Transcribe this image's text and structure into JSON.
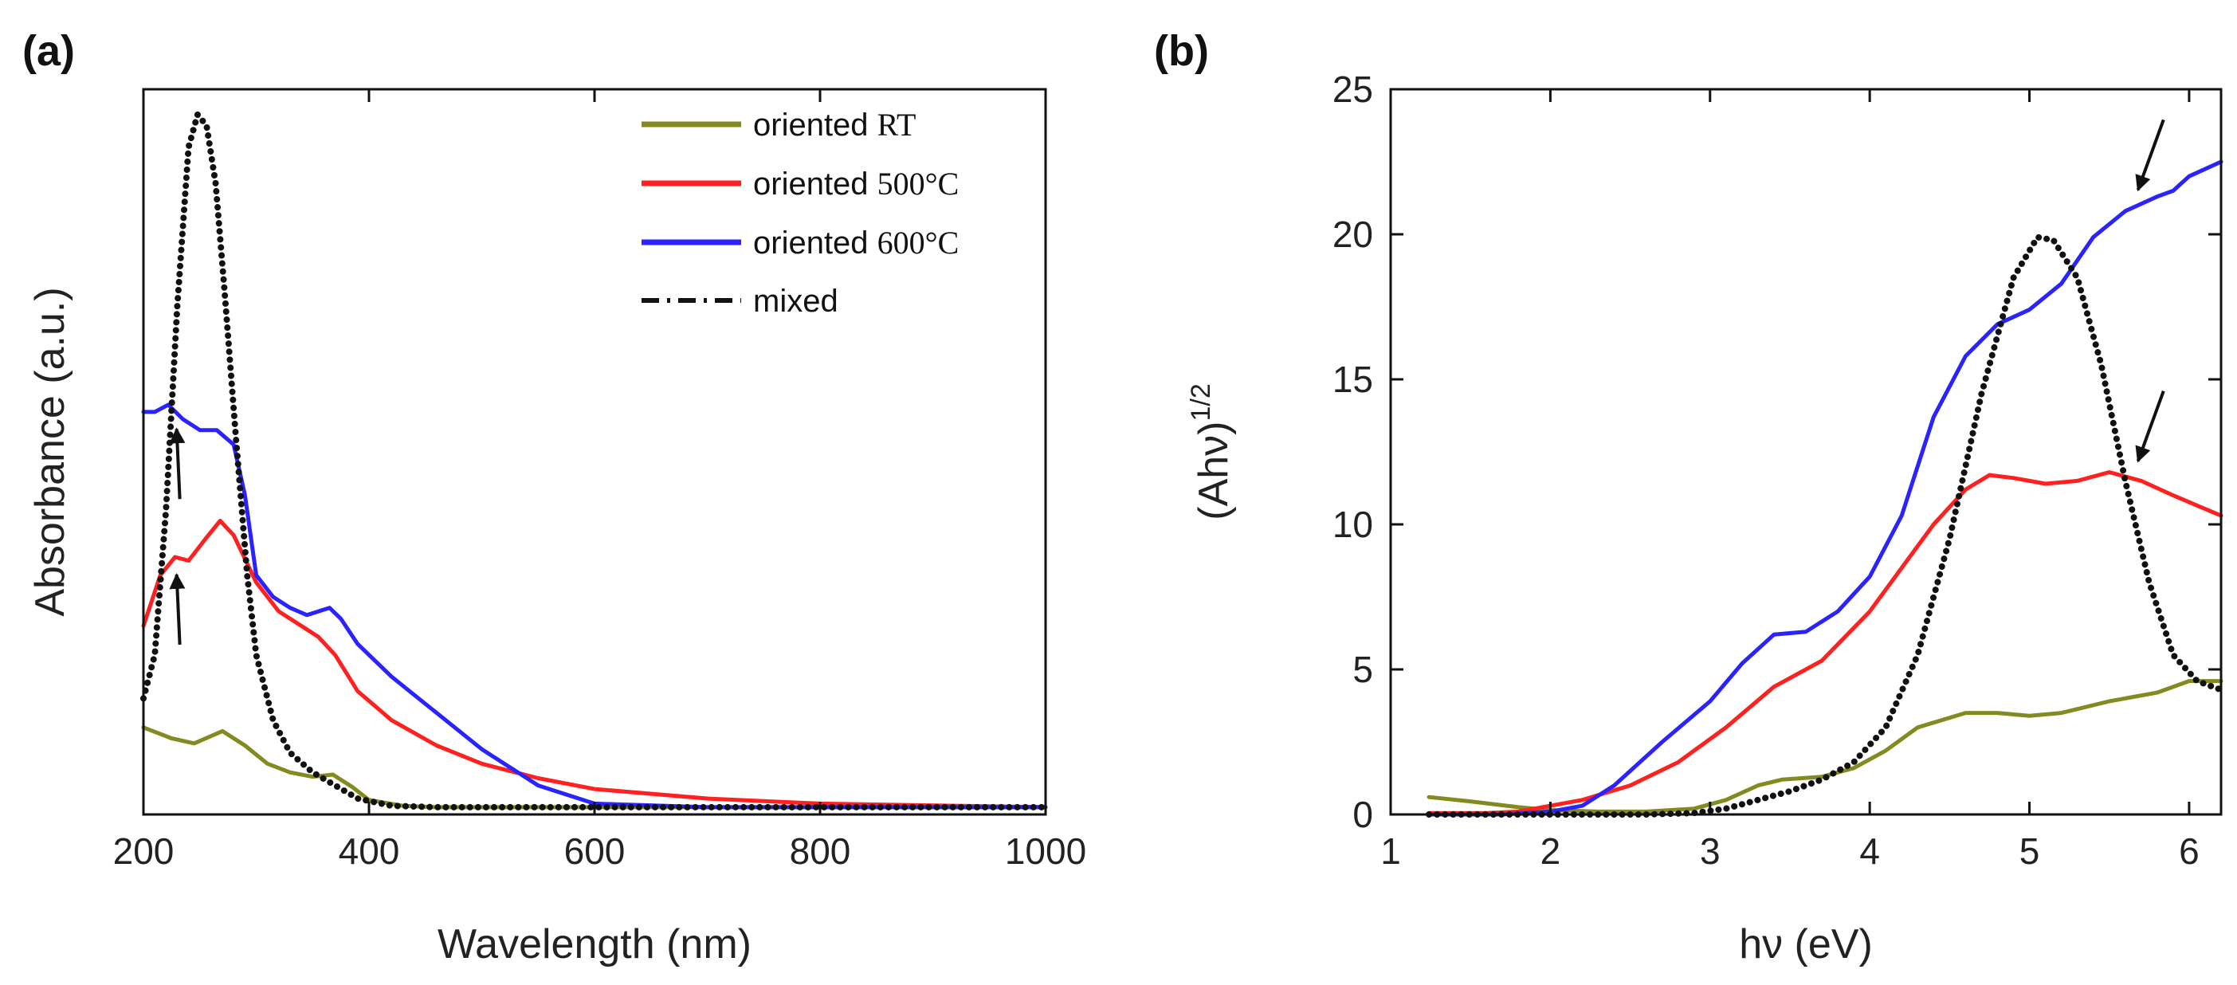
{
  "colors": {
    "oriented_RT": "#838a1f",
    "oriented_500": "#ff2020",
    "oriented_600": "#2a23ff",
    "mixed": "#111111"
  },
  "chart_data": [
    {
      "panel": "(a)",
      "type": "line",
      "title": "",
      "xlabel": "Wavelength (nm)",
      "ylabel": "Absorbance (a.u.)",
      "xlim": [
        200,
        1000
      ],
      "ylim": [
        0,
        1.0
      ],
      "xticks": [
        200,
        400,
        600,
        800,
        1000
      ],
      "xtick_labels": [
        "200",
        "400",
        "600",
        "800",
        "1000"
      ],
      "legend": {
        "position": "top-right",
        "entries": [
          {
            "text": "oriented ",
            "unit": "RT",
            "series": "oriented_RT"
          },
          {
            "text": "oriented ",
            "unit": "500°C",
            "series": "oriented_500"
          },
          {
            "text": "oriented ",
            "unit": "600°C",
            "series": "oriented_600"
          },
          {
            "text": "mixed",
            "unit": "",
            "series": "mixed"
          }
        ]
      },
      "series": [
        {
          "key": "oriented_RT",
          "name": "oriented RT",
          "style": "solid",
          "x": [
            200,
            225,
            245,
            270,
            290,
            310,
            330,
            350,
            368,
            385,
            400,
            430,
            460,
            500,
            600,
            800,
            1000
          ],
          "y": [
            0.12,
            0.105,
            0.098,
            0.115,
            0.095,
            0.07,
            0.058,
            0.052,
            0.055,
            0.038,
            0.02,
            0.012,
            0.01,
            0.01,
            0.01,
            0.01,
            0.01
          ]
        },
        {
          "key": "oriented_500",
          "name": "oriented 500°C",
          "style": "solid",
          "x": [
            200,
            215,
            228,
            240,
            255,
            268,
            280,
            300,
            320,
            340,
            355,
            370,
            390,
            420,
            460,
            500,
            550,
            600,
            700,
            800,
            1000
          ],
          "y": [
            0.26,
            0.33,
            0.355,
            0.35,
            0.38,
            0.405,
            0.385,
            0.32,
            0.28,
            0.26,
            0.245,
            0.22,
            0.17,
            0.13,
            0.095,
            0.07,
            0.05,
            0.035,
            0.022,
            0.015,
            0.01
          ]
        },
        {
          "key": "oriented_600",
          "name": "oriented 600°C",
          "style": "solid",
          "x": [
            200,
            210,
            222,
            235,
            250,
            265,
            280,
            290,
            300,
            315,
            330,
            345,
            355,
            365,
            375,
            390,
            420,
            460,
            500,
            550,
            600,
            700,
            800,
            1000
          ],
          "y": [
            0.555,
            0.555,
            0.565,
            0.545,
            0.53,
            0.53,
            0.51,
            0.44,
            0.33,
            0.3,
            0.285,
            0.275,
            0.28,
            0.285,
            0.27,
            0.235,
            0.19,
            0.14,
            0.09,
            0.04,
            0.015,
            0.01,
            0.01,
            0.01
          ]
        },
        {
          "key": "mixed",
          "name": "mixed",
          "style": "dotted",
          "x": [
            200,
            210,
            220,
            230,
            240,
            248,
            256,
            264,
            272,
            282,
            292,
            300,
            315,
            330,
            350,
            370,
            390,
            420,
            460,
            500,
            1000
          ],
          "y": [
            0.16,
            0.22,
            0.42,
            0.7,
            0.92,
            0.965,
            0.95,
            0.87,
            0.72,
            0.52,
            0.33,
            0.22,
            0.13,
            0.085,
            0.058,
            0.04,
            0.022,
            0.012,
            0.01,
            0.01,
            0.01
          ]
        }
      ],
      "annotations": [
        {
          "type": "arrow",
          "series": "oriented_600",
          "x": 228
        },
        {
          "type": "arrow",
          "series": "oriented_500",
          "x": 228
        }
      ]
    },
    {
      "panel": "(b)",
      "type": "line",
      "title": "",
      "xlabel": "hν (eV)",
      "ylabel_main": "(Ahν)",
      "ylabel_sup": "1/2",
      "xlim": [
        1,
        6.2
      ],
      "ylim": [
        0,
        25
      ],
      "xticks": [
        1,
        2,
        3,
        4,
        5,
        6
      ],
      "xtick_labels": [
        "1",
        "2",
        "3",
        "4",
        "5",
        "6"
      ],
      "yticks": [
        0,
        5,
        10,
        15,
        20,
        25
      ],
      "ytick_labels": [
        "0",
        "5",
        "10",
        "15",
        "20",
        "25"
      ],
      "series": [
        {
          "key": "oriented_RT",
          "name": "oriented RT",
          "style": "solid",
          "x": [
            1.24,
            1.5,
            1.8,
            2.0,
            2.3,
            2.6,
            2.9,
            3.1,
            3.3,
            3.45,
            3.7,
            3.9,
            4.1,
            4.3,
            4.6,
            4.8,
            5.0,
            5.2,
            5.5,
            5.8,
            6.0,
            6.2
          ],
          "y": [
            0.6,
            0.45,
            0.25,
            0.15,
            0.1,
            0.1,
            0.2,
            0.5,
            1.0,
            1.2,
            1.3,
            1.6,
            2.2,
            3.0,
            3.5,
            3.5,
            3.4,
            3.5,
            3.9,
            4.2,
            4.6,
            4.6
          ]
        },
        {
          "key": "oriented_500",
          "name": "oriented 500°C",
          "style": "solid",
          "x": [
            1.24,
            1.6,
            1.8,
            2.0,
            2.2,
            2.5,
            2.8,
            3.1,
            3.4,
            3.7,
            4.0,
            4.2,
            4.4,
            4.6,
            4.75,
            4.9,
            5.1,
            5.3,
            5.5,
            5.7,
            5.9,
            6.2
          ],
          "y": [
            0.05,
            0.05,
            0.1,
            0.3,
            0.5,
            1.0,
            1.8,
            3.0,
            4.4,
            5.3,
            7.0,
            8.5,
            10.0,
            11.2,
            11.7,
            11.6,
            11.4,
            11.5,
            11.8,
            11.5,
            11.0,
            10.3
          ]
        },
        {
          "key": "oriented_600",
          "name": "oriented 600°C",
          "style": "solid",
          "x": [
            1.24,
            1.7,
            2.0,
            2.2,
            2.4,
            2.7,
            3.0,
            3.2,
            3.4,
            3.6,
            3.8,
            4.0,
            4.2,
            4.4,
            4.6,
            4.8,
            5.0,
            5.2,
            5.4,
            5.6,
            5.8,
            5.9,
            6.0,
            6.2
          ],
          "y": [
            0.0,
            0.0,
            0.1,
            0.3,
            1.0,
            2.5,
            3.9,
            5.2,
            6.2,
            6.3,
            7.0,
            8.2,
            10.3,
            13.7,
            15.8,
            16.9,
            17.4,
            18.3,
            19.9,
            20.8,
            21.3,
            21.5,
            22.0,
            22.5
          ]
        },
        {
          "key": "mixed",
          "name": "mixed",
          "style": "dotted",
          "x": [
            1.24,
            2.6,
            2.9,
            3.1,
            3.3,
            3.5,
            3.7,
            3.9,
            4.1,
            4.3,
            4.5,
            4.7,
            4.9,
            5.05,
            5.15,
            5.3,
            5.45,
            5.6,
            5.75,
            5.9,
            6.05,
            6.2
          ],
          "y": [
            0.0,
            0.0,
            0.05,
            0.2,
            0.5,
            0.8,
            1.2,
            1.8,
            3.0,
            5.5,
            9.5,
            14.5,
            18.5,
            19.9,
            19.8,
            18.5,
            15.5,
            11.5,
            8.0,
            5.5,
            4.6,
            4.3
          ]
        }
      ],
      "annotations": [
        {
          "type": "arrow",
          "series": "oriented_600",
          "x": 5.65
        },
        {
          "type": "arrow",
          "series": "oriented_500",
          "x": 5.65
        }
      ]
    }
  ]
}
